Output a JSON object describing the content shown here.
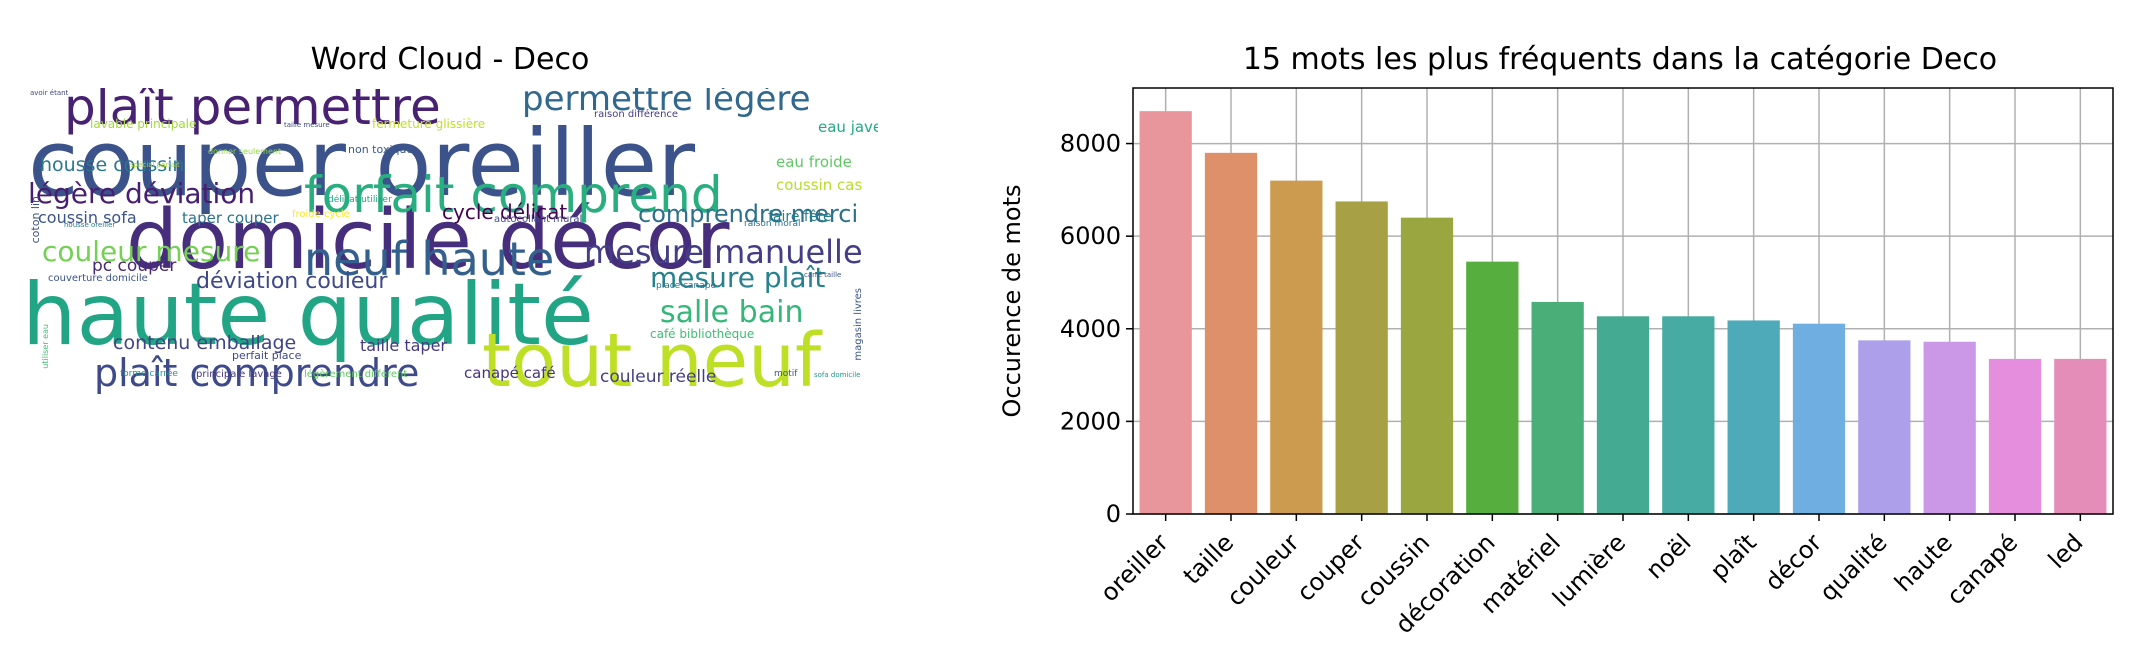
{
  "wordcloud": {
    "title": "Word Cloud - Deco",
    "words": [
      {
        "text": "couper oreiller",
        "color": "#3b528b"
      },
      {
        "text": "haute qualité",
        "color": "#21a585"
      },
      {
        "text": "domicile décor",
        "color": "#472e7c"
      },
      {
        "text": "tout neuf",
        "color": "#bddf26"
      },
      {
        "text": "forfait comprend",
        "color": "#29af7f"
      },
      {
        "text": "plaît permettre",
        "color": "#482173"
      },
      {
        "text": "neuf haute",
        "color": "#34608d"
      },
      {
        "text": "plaît comprendre",
        "color": "#3e4a89"
      },
      {
        "text": "permettre légère",
        "color": "#31688e"
      },
      {
        "text": "mesure manuelle",
        "color": "#433e85"
      },
      {
        "text": "salle bain",
        "color": "#35b779"
      },
      {
        "text": "couleur mesure",
        "color": "#75d054"
      },
      {
        "text": "légère déviation",
        "color": "#481f70"
      },
      {
        "text": "mesure plaît",
        "color": "#26828e"
      },
      {
        "text": "comprendre merci",
        "color": "#2d708e"
      },
      {
        "text": "déviation couleur",
        "color": "#3e4989"
      },
      {
        "text": "housse coussin",
        "color": "#2a788e"
      },
      {
        "text": "cycle délicat",
        "color": "#440154"
      },
      {
        "text": "contenu emballage",
        "color": "#414487"
      },
      {
        "text": "pc couper",
        "color": "#482878"
      },
      {
        "text": "coussin sofa",
        "color": "#3b528b"
      },
      {
        "text": "taper couper",
        "color": "#2c728e"
      },
      {
        "text": "taille taper",
        "color": "#443983"
      },
      {
        "text": "canapé café",
        "color": "#46327e"
      },
      {
        "text": "couleur réelle",
        "color": "#433e85"
      },
      {
        "text": "eau froide",
        "color": "#5ec962"
      },
      {
        "text": "eau javel",
        "color": "#22a884"
      },
      {
        "text": "coussin cas",
        "color": "#b5de2b"
      },
      {
        "text": "faire fête",
        "color": "#277f8e"
      },
      {
        "text": "lavable principale",
        "color": "#a2da37"
      },
      {
        "text": "fermeture glissière",
        "color": "#c0df25"
      },
      {
        "text": "non toxique",
        "color": "#38588c"
      },
      {
        "text": "café bibliothèque",
        "color": "#3fbc73"
      },
      {
        "text": "coton lin",
        "color": "#3b528b"
      },
      {
        "text": "magasin livres",
        "color": "#39558c"
      },
      {
        "text": "couverture domicile",
        "color": "#3b528b"
      },
      {
        "text": "perfait place",
        "color": "#3f4788"
      },
      {
        "text": "légèrement différent",
        "color": "#5ec962"
      },
      {
        "text": "forme carrée",
        "color": "#1f958b"
      },
      {
        "text": "principale lavage",
        "color": "#453781"
      },
      {
        "text": "autocollant mural",
        "color": "#3e4c8a"
      },
      {
        "text": "raison différence",
        "color": "#433d84"
      },
      {
        "text": "raison moral",
        "color": "#2c728e"
      },
      {
        "text": "motif",
        "color": "#38598c"
      },
      {
        "text": "sofa domicile",
        "color": "#1f978b"
      },
      {
        "text": "froide cycle",
        "color": "#fde725"
      },
      {
        "text": "délicat utiliser",
        "color": "#20a486"
      },
      {
        "text": "utiliser eau",
        "color": "#3fbc73"
      },
      {
        "text": "housse oreiller",
        "color": "#2a788e"
      },
      {
        "text": "taille mesure",
        "color": "#3e4989"
      },
      {
        "text": "donner seulement",
        "color": "#90d743"
      },
      {
        "text": "spécial parfait",
        "color": "#a8db34"
      },
      {
        "text": "avoir étant",
        "color": "#3e4989"
      },
      {
        "text": "carré taille",
        "color": "#3b528b"
      },
      {
        "text": "place canapé",
        "color": "#2c728e"
      }
    ]
  },
  "chart_data": {
    "type": "bar",
    "title": "15 mots les plus fréquents dans la catégorie Deco",
    "xlabel": "",
    "ylabel": "Occurence de mots",
    "ylim": [
      0,
      9200
    ],
    "yticks": [
      0,
      2000,
      4000,
      6000,
      8000
    ],
    "grid": true,
    "categories": [
      "oreiller",
      "taille",
      "couleur",
      "couper",
      "coussin",
      "décoration",
      "matériel",
      "lumière",
      "noël",
      "plaît",
      "décor",
      "qualité",
      "haute",
      "canapé",
      "led"
    ],
    "values": [
      8700,
      7800,
      7200,
      6750,
      6400,
      5450,
      4580,
      4270,
      4270,
      4180,
      4110,
      3750,
      3720,
      3350,
      3350
    ],
    "colors": [
      "#e8969c",
      "#dd9069",
      "#cd9b4f",
      "#a8a044",
      "#9aa63f",
      "#55ae3d",
      "#4aae79",
      "#45aa92",
      "#47aaa3",
      "#4eaab8",
      "#6eaee0",
      "#ad9fea",
      "#cb98e8",
      "#e58edd",
      "#e38db8"
    ]
  }
}
